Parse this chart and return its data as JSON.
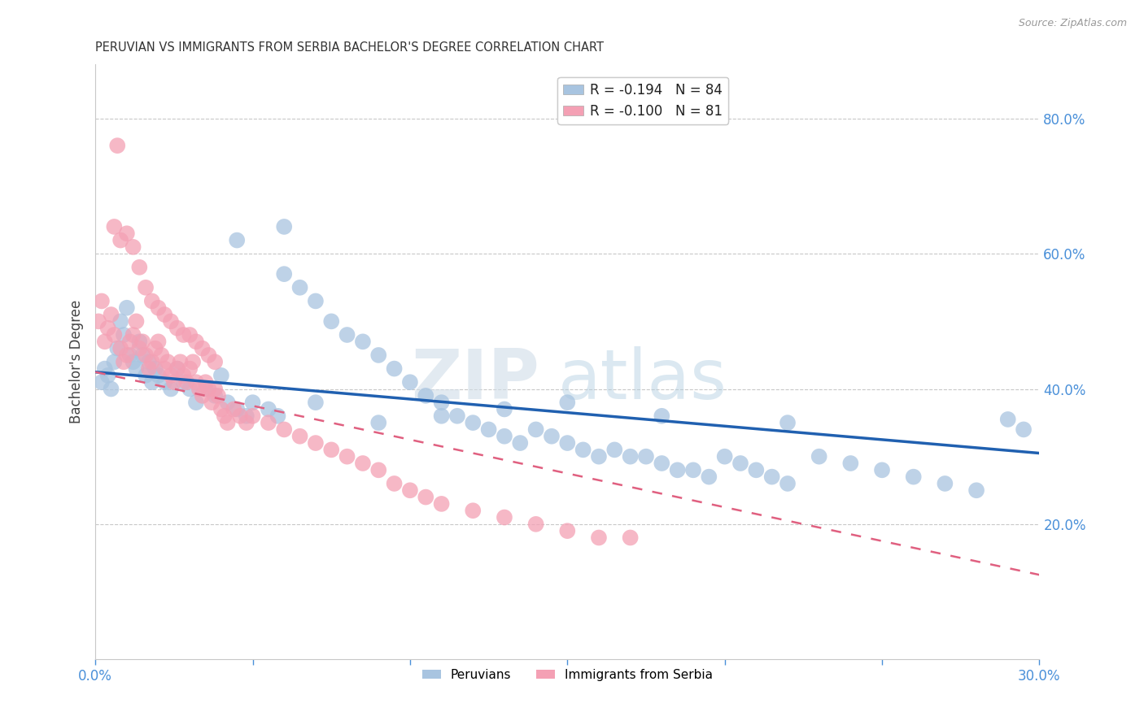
{
  "title": "PERUVIAN VS IMMIGRANTS FROM SERBIA BACHELOR'S DEGREE CORRELATION CHART",
  "source": "Source: ZipAtlas.com",
  "ylabel": "Bachelor's Degree",
  "right_yticks": [
    "80.0%",
    "60.0%",
    "40.0%",
    "20.0%"
  ],
  "right_ytick_vals": [
    0.8,
    0.6,
    0.4,
    0.2
  ],
  "xlim": [
    0.0,
    0.3
  ],
  "ylim": [
    0.0,
    0.88
  ],
  "legend_blue": "R = -0.194   N = 84",
  "legend_pink": "R = -0.100   N = 81",
  "blue_color": "#a8c4e0",
  "pink_color": "#f4a0b4",
  "blue_line_color": "#2060b0",
  "pink_line_color": "#e06080",
  "watermark_zip": "ZIP",
  "watermark_atlas": "atlas",
  "grid_color": "#c8c8c8",
  "background_color": "#ffffff",
  "title_fontsize": 10.5,
  "axis_color": "#4a90d9",
  "blue_line_x": [
    0.0,
    0.3
  ],
  "blue_line_y": [
    0.425,
    0.305
  ],
  "pink_line_x": [
    0.0,
    0.3
  ],
  "pink_line_y": [
    0.425,
    0.125
  ],
  "blue_scatter_x": [
    0.002,
    0.003,
    0.004,
    0.005,
    0.006,
    0.007,
    0.008,
    0.009,
    0.01,
    0.011,
    0.012,
    0.013,
    0.014,
    0.015,
    0.016,
    0.017,
    0.018,
    0.019,
    0.02,
    0.022,
    0.024,
    0.026,
    0.028,
    0.03,
    0.032,
    0.035,
    0.038,
    0.04,
    0.042,
    0.045,
    0.048,
    0.05,
    0.055,
    0.058,
    0.06,
    0.065,
    0.07,
    0.075,
    0.08,
    0.085,
    0.09,
    0.095,
    0.1,
    0.105,
    0.11,
    0.115,
    0.12,
    0.125,
    0.13,
    0.135,
    0.14,
    0.145,
    0.15,
    0.155,
    0.16,
    0.165,
    0.17,
    0.175,
    0.18,
    0.185,
    0.19,
    0.195,
    0.2,
    0.205,
    0.21,
    0.215,
    0.22,
    0.23,
    0.24,
    0.25,
    0.26,
    0.27,
    0.28,
    0.22,
    0.18,
    0.15,
    0.13,
    0.11,
    0.09,
    0.07,
    0.06,
    0.045,
    0.29,
    0.295
  ],
  "blue_scatter_y": [
    0.41,
    0.43,
    0.42,
    0.4,
    0.44,
    0.46,
    0.5,
    0.48,
    0.52,
    0.45,
    0.44,
    0.43,
    0.47,
    0.45,
    0.42,
    0.44,
    0.41,
    0.43,
    0.42,
    0.41,
    0.4,
    0.43,
    0.41,
    0.4,
    0.38,
    0.4,
    0.39,
    0.42,
    0.38,
    0.37,
    0.36,
    0.38,
    0.37,
    0.36,
    0.57,
    0.55,
    0.53,
    0.5,
    0.48,
    0.47,
    0.45,
    0.43,
    0.41,
    0.39,
    0.38,
    0.36,
    0.35,
    0.34,
    0.33,
    0.32,
    0.34,
    0.33,
    0.32,
    0.31,
    0.3,
    0.31,
    0.3,
    0.3,
    0.29,
    0.28,
    0.28,
    0.27,
    0.3,
    0.29,
    0.28,
    0.27,
    0.26,
    0.3,
    0.29,
    0.28,
    0.27,
    0.26,
    0.25,
    0.35,
    0.36,
    0.38,
    0.37,
    0.36,
    0.35,
    0.38,
    0.64,
    0.62,
    0.355,
    0.34
  ],
  "pink_scatter_x": [
    0.001,
    0.002,
    0.003,
    0.004,
    0.005,
    0.006,
    0.007,
    0.008,
    0.009,
    0.01,
    0.011,
    0.012,
    0.013,
    0.014,
    0.015,
    0.016,
    0.017,
    0.018,
    0.019,
    0.02,
    0.021,
    0.022,
    0.023,
    0.024,
    0.025,
    0.026,
    0.027,
    0.028,
    0.029,
    0.03,
    0.031,
    0.032,
    0.033,
    0.034,
    0.035,
    0.036,
    0.037,
    0.038,
    0.039,
    0.04,
    0.041,
    0.042,
    0.044,
    0.046,
    0.048,
    0.05,
    0.055,
    0.06,
    0.065,
    0.07,
    0.075,
    0.08,
    0.085,
    0.09,
    0.095,
    0.1,
    0.105,
    0.11,
    0.12,
    0.13,
    0.14,
    0.15,
    0.16,
    0.17,
    0.006,
    0.008,
    0.01,
    0.012,
    0.014,
    0.016,
    0.018,
    0.02,
    0.022,
    0.024,
    0.026,
    0.028,
    0.03,
    0.032,
    0.034,
    0.036,
    0.038
  ],
  "pink_scatter_y": [
    0.5,
    0.53,
    0.47,
    0.49,
    0.51,
    0.48,
    0.76,
    0.46,
    0.44,
    0.45,
    0.47,
    0.48,
    0.5,
    0.46,
    0.47,
    0.45,
    0.43,
    0.44,
    0.46,
    0.47,
    0.45,
    0.43,
    0.44,
    0.42,
    0.41,
    0.43,
    0.44,
    0.42,
    0.41,
    0.43,
    0.44,
    0.41,
    0.4,
    0.39,
    0.41,
    0.4,
    0.38,
    0.4,
    0.39,
    0.37,
    0.36,
    0.35,
    0.37,
    0.36,
    0.35,
    0.36,
    0.35,
    0.34,
    0.33,
    0.32,
    0.31,
    0.3,
    0.29,
    0.28,
    0.26,
    0.25,
    0.24,
    0.23,
    0.22,
    0.21,
    0.2,
    0.19,
    0.18,
    0.18,
    0.64,
    0.62,
    0.63,
    0.61,
    0.58,
    0.55,
    0.53,
    0.52,
    0.51,
    0.5,
    0.49,
    0.48,
    0.48,
    0.47,
    0.46,
    0.45,
    0.44
  ]
}
